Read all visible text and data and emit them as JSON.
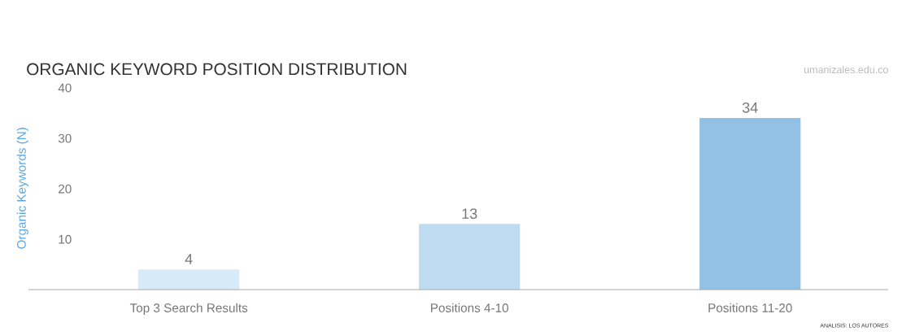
{
  "chart_data": {
    "type": "bar",
    "title": "ORGANIC KEYWORD POSITION DISTRIBUTION",
    "ylabel": "Organic Keywords (N)",
    "categories": [
      "Top 3 Search Results",
      "Positions 4-10",
      "Positions 11-20"
    ],
    "values": [
      4,
      13,
      34
    ],
    "colors": [
      "#d6eaf8",
      "#bddcf2",
      "#93c1e6"
    ],
    "ylim": [
      0,
      40
    ],
    "yticks": [
      10,
      20,
      30,
      40
    ],
    "data_labels": true,
    "grid": false,
    "legend": false,
    "annotations": [
      "umanizales.edu.co",
      "ANALISIS: LOS AUTORES"
    ]
  }
}
